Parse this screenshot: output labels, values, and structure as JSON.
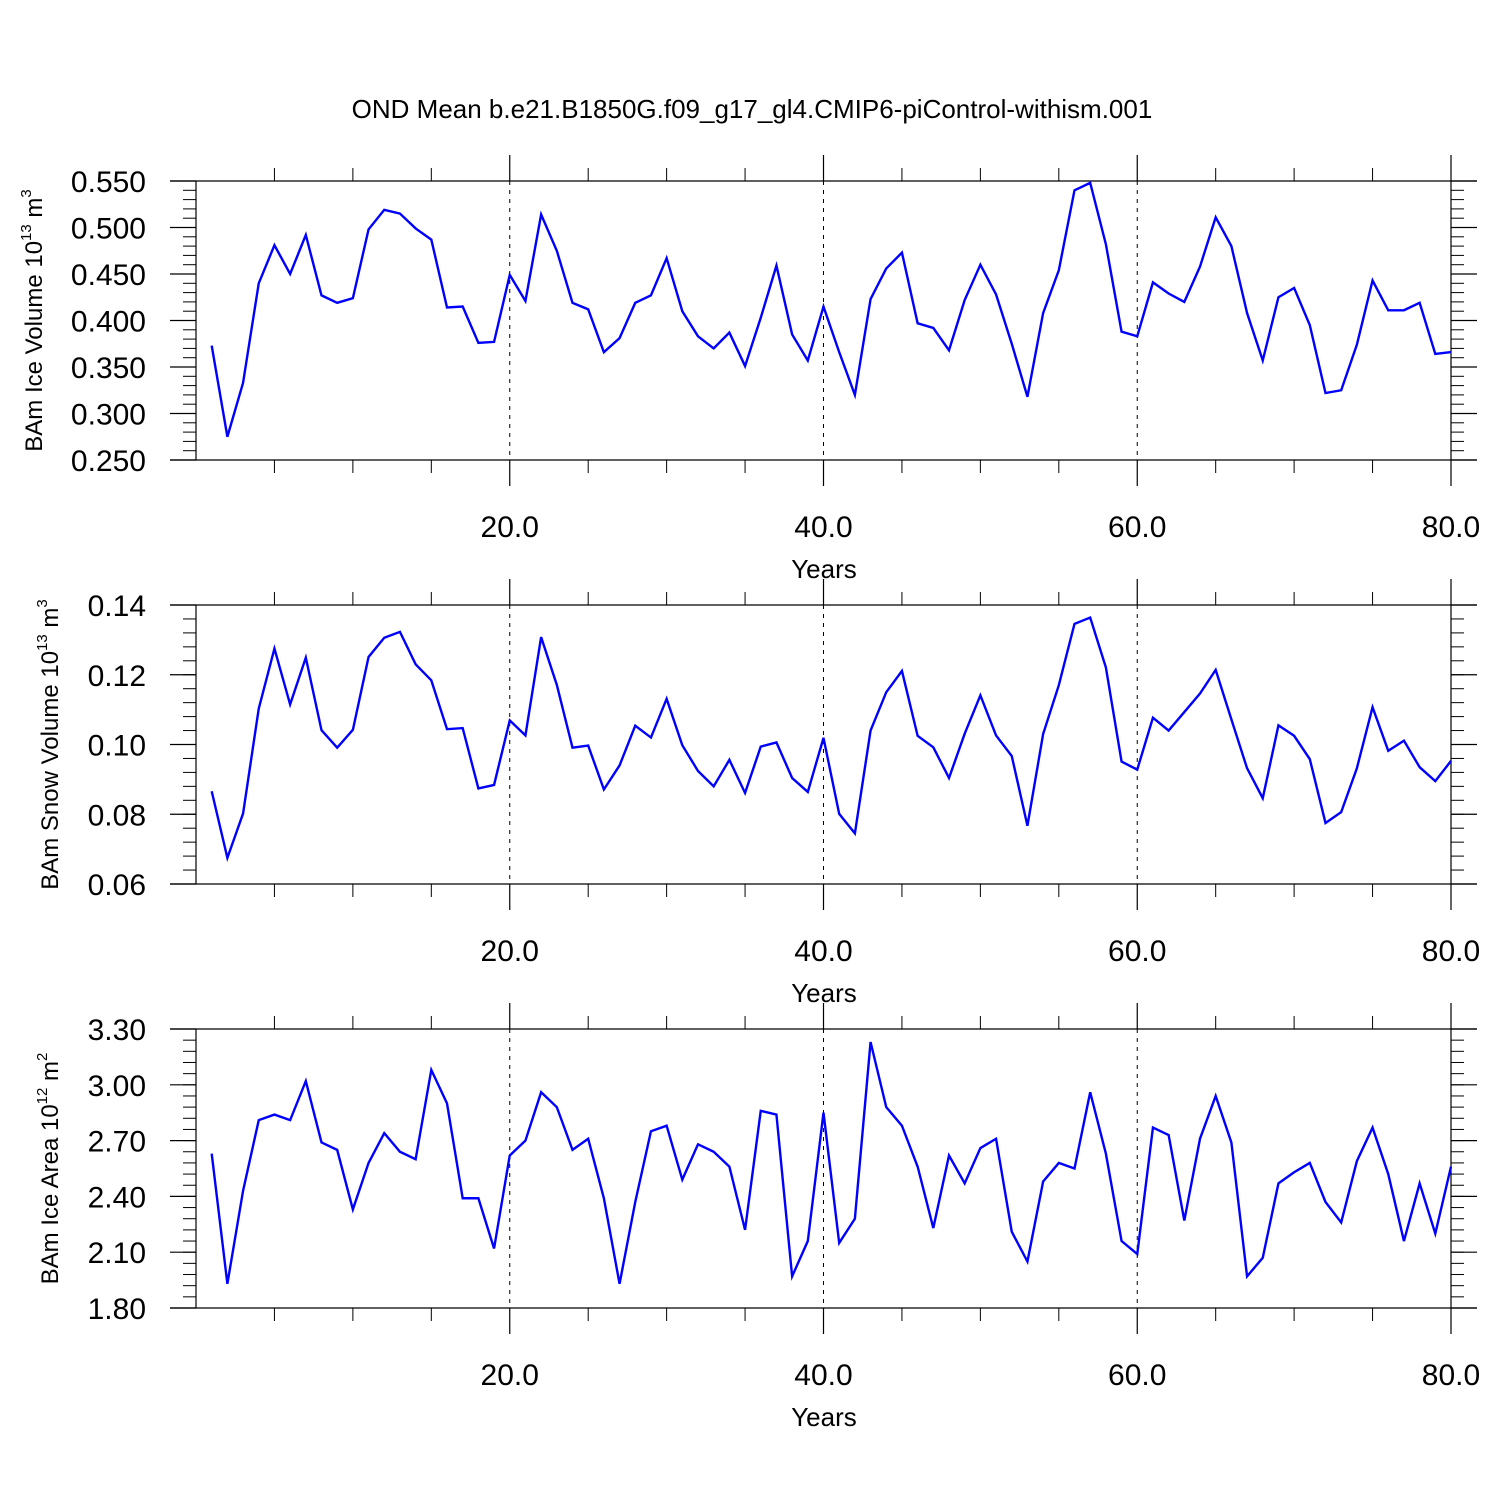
{
  "title": "OND Mean b.e21.B1850G.f09_g17_gl4.CMIP6-piControl-withism.001",
  "line_color": "#0000ff",
  "chart_data": [
    {
      "type": "line",
      "ylabel": {
        "text": "BAm Ice Volume 10",
        "exponent": "13",
        "unit": " m",
        "unit_exponent": "3"
      },
      "xlabel": "Years",
      "xlim": [
        0,
        80
      ],
      "ylim": [
        0.25,
        0.55
      ],
      "xticks": [
        20,
        40,
        60,
        80
      ],
      "xtick_labels": [
        "20.0",
        "40.0",
        "60.0",
        "80.0"
      ],
      "yticks": [
        0.25,
        0.3,
        0.35,
        0.4,
        0.45,
        0.5,
        0.55
      ],
      "ytick_labels": [
        "0.250",
        "0.300",
        "0.350",
        "0.400",
        "0.450",
        "0.500",
        "0.550"
      ],
      "gridlines_x": [
        20,
        40,
        60
      ],
      "series": [
        {
          "x_start": 1,
          "values": [
            0.373,
            0.275,
            0.333,
            0.44,
            0.481,
            0.45,
            0.492,
            0.427,
            0.419,
            0.424,
            0.498,
            0.519,
            0.515,
            0.499,
            0.487,
            0.414,
            0.415,
            0.376,
            0.377,
            0.449,
            0.421,
            0.514,
            0.475,
            0.419,
            0.412,
            0.366,
            0.381,
            0.419,
            0.427,
            0.467,
            0.41,
            0.383,
            0.37,
            0.387,
            0.351,
            0.403,
            0.459,
            0.385,
            0.357,
            0.415,
            0.366,
            0.32,
            0.423,
            0.456,
            0.473,
            0.397,
            0.392,
            0.368,
            0.422,
            0.46,
            0.428,
            0.375,
            0.318,
            0.408,
            0.454,
            0.54,
            0.548,
            0.482,
            0.388,
            0.383,
            0.441,
            0.429,
            0.42,
            0.458,
            0.511,
            0.48,
            0.408,
            0.357,
            0.425,
            0.435,
            0.395,
            0.322,
            0.325,
            0.374,
            0.443,
            0.411,
            0.411,
            0.419,
            0.364,
            0.366
          ]
        }
      ]
    },
    {
      "type": "line",
      "ylabel": {
        "text": "BAm Snow Volume 10",
        "exponent": "13",
        "unit": " m",
        "unit_exponent": "3"
      },
      "xlabel": "Years",
      "xlim": [
        0,
        80
      ],
      "ylim": [
        0.06,
        0.14
      ],
      "xticks": [
        20,
        40,
        60,
        80
      ],
      "xtick_labels": [
        "20.0",
        "40.0",
        "60.0",
        "80.0"
      ],
      "yticks": [
        0.06,
        0.08,
        0.1,
        0.12,
        0.14
      ],
      "ytick_labels": [
        "0.06",
        "0.08",
        "0.10",
        "0.12",
        "0.14"
      ],
      "gridlines_x": [
        20,
        40,
        60
      ],
      "series": [
        {
          "x_start": 1,
          "values": [
            0.0866,
            0.0675,
            0.0802,
            0.1103,
            0.1275,
            0.1115,
            0.1249,
            0.1041,
            0.0991,
            0.1042,
            0.1251,
            0.1306,
            0.1323,
            0.123,
            0.1184,
            0.1044,
            0.1047,
            0.0874,
            0.0884,
            0.1069,
            0.1026,
            0.1308,
            0.1171,
            0.0991,
            0.0997,
            0.0871,
            0.094,
            0.1054,
            0.102,
            0.1131,
            0.0998,
            0.0924,
            0.088,
            0.0956,
            0.0861,
            0.0994,
            0.1006,
            0.0904,
            0.0864,
            0.1019,
            0.0801,
            0.0745,
            0.104,
            0.115,
            0.1211,
            0.1025,
            0.0992,
            0.0904,
            0.1031,
            0.1141,
            0.1026,
            0.0967,
            0.0767,
            0.103,
            0.117,
            0.1346,
            0.1364,
            0.1221,
            0.0951,
            0.0928,
            0.1077,
            0.104,
            0.1093,
            0.1146,
            0.1214,
            0.1072,
            0.0932,
            0.0846,
            0.1055,
            0.1025,
            0.0958,
            0.0775,
            0.0806,
            0.0932,
            0.1107,
            0.0982,
            0.1011,
            0.0935,
            0.0895,
            0.0953
          ]
        }
      ]
    },
    {
      "type": "line",
      "ylabel": {
        "text": "BAm Ice Area 10",
        "exponent": "12",
        "unit": " m",
        "unit_exponent": "2"
      },
      "xlabel": "Years",
      "xlim": [
        0,
        80
      ],
      "ylim": [
        1.8,
        3.3
      ],
      "xticks": [
        20,
        40,
        60,
        80
      ],
      "xtick_labels": [
        "20.0",
        "40.0",
        "60.0",
        "80.0"
      ],
      "yticks": [
        1.8,
        2.1,
        2.4,
        2.7,
        3.0,
        3.3
      ],
      "ytick_labels": [
        "1.80",
        "2.10",
        "2.40",
        "2.70",
        "3.00",
        "3.30"
      ],
      "gridlines_x": [
        20,
        40,
        60
      ],
      "series": [
        {
          "x_start": 1,
          "values": [
            2.63,
            1.93,
            2.43,
            2.81,
            2.84,
            2.81,
            3.02,
            2.69,
            2.65,
            2.33,
            2.58,
            2.74,
            2.64,
            2.6,
            3.08,
            2.9,
            2.39,
            2.39,
            2.12,
            2.62,
            2.7,
            2.96,
            2.88,
            2.65,
            2.71,
            2.39,
            1.93,
            2.37,
            2.75,
            2.78,
            2.49,
            2.68,
            2.64,
            2.56,
            2.22,
            2.86,
            2.84,
            1.97,
            2.16,
            2.85,
            2.15,
            2.28,
            3.23,
            2.88,
            2.78,
            2.56,
            2.23,
            2.62,
            2.47,
            2.66,
            2.71,
            2.21,
            2.05,
            2.48,
            2.58,
            2.55,
            2.96,
            2.63,
            2.16,
            2.09,
            2.77,
            2.73,
            2.27,
            2.71,
            2.94,
            2.69,
            1.97,
            2.07,
            2.47,
            2.53,
            2.58,
            2.37,
            2.26,
            2.59,
            2.77,
            2.52,
            2.16,
            2.47,
            2.2,
            2.56
          ]
        }
      ]
    }
  ]
}
